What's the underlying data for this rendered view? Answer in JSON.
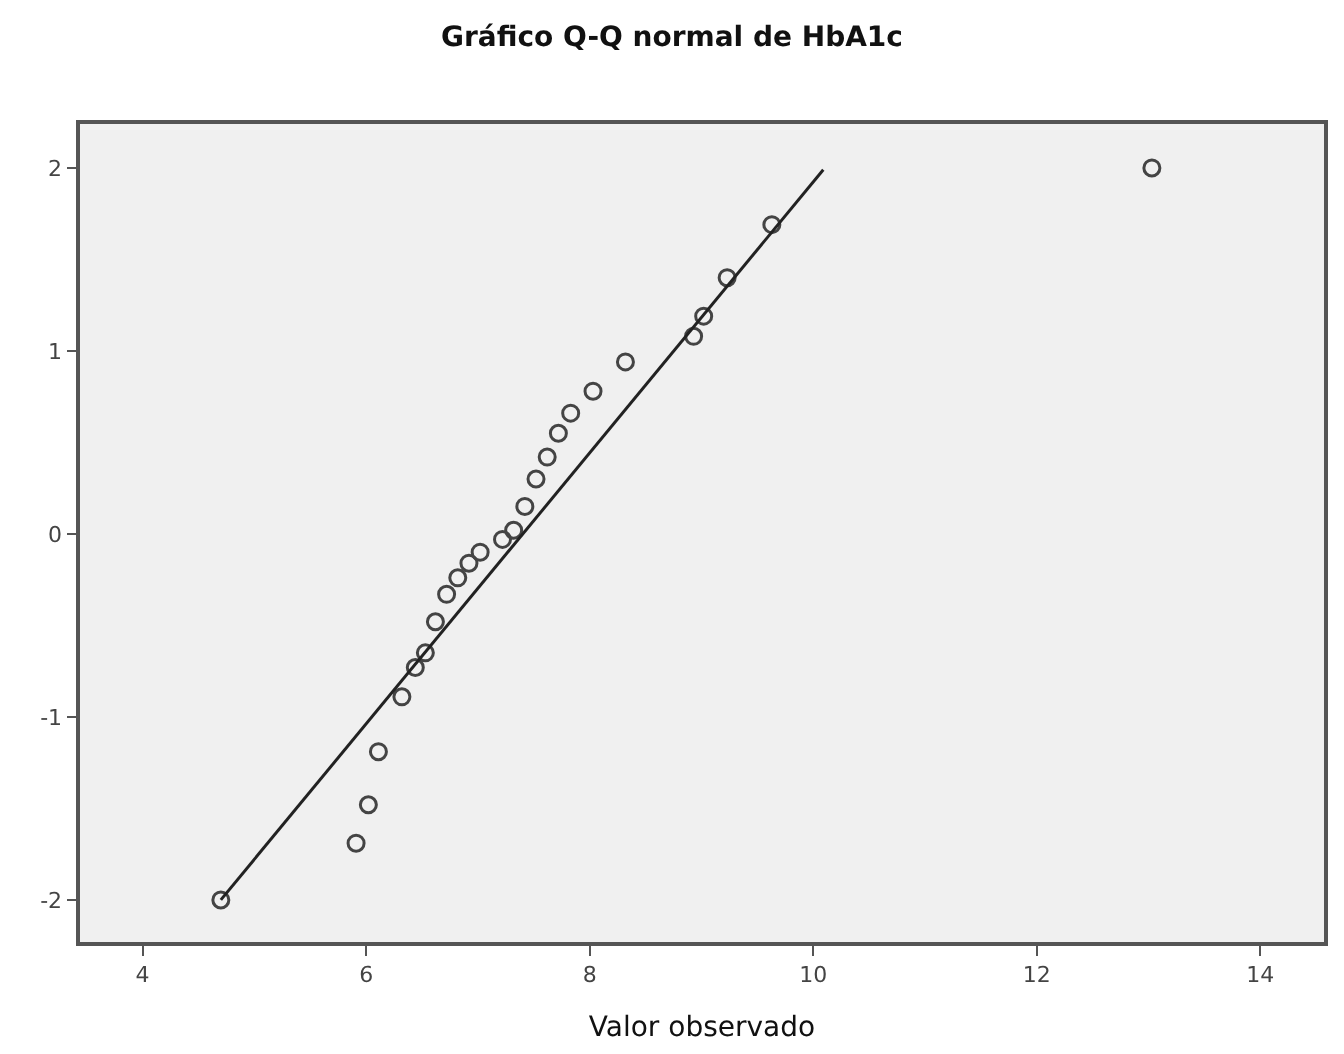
{
  "chart_data": {
    "type": "scatter",
    "title": "Gráfico Q-Q normal de HbA1c",
    "xlabel": "Valor observado",
    "x": [
      4.7,
      5.91,
      6.02,
      6.11,
      6.32,
      6.44,
      6.53,
      6.62,
      6.72,
      6.82,
      6.92,
      7.02,
      7.22,
      7.32,
      7.42,
      7.52,
      7.62,
      7.72,
      7.83,
      8.03,
      8.32,
      8.93,
      9.02,
      9.23,
      9.63,
      13.03
    ],
    "series": [
      {
        "color": "#444444",
        "values": [
          -2.0,
          -1.69,
          -1.48,
          -1.19,
          -0.89,
          -0.73,
          -0.65,
          -0.48,
          -0.33,
          -0.24,
          -0.16,
          -0.1,
          -0.03,
          0.02,
          0.15,
          0.3,
          0.42,
          0.55,
          0.66,
          0.78,
          0.94,
          1.08,
          1.19,
          1.4,
          1.69,
          2.0
        ]
      },
      {
        "type": "line",
        "color": "#222222",
        "x": [
          4.7,
          10.09
        ],
        "values": [
          -2.0,
          1.99
        ],
        "marker": "none"
      }
    ],
    "marker": "circle",
    "grid": false,
    "xlim": [
      3.44,
      14.57
    ],
    "ylim": [
      -2.23,
      2.24
    ],
    "xticks": [
      4,
      6,
      8,
      10,
      12,
      14
    ],
    "yticks": [
      -2,
      -1,
      0,
      1,
      2
    ]
  }
}
